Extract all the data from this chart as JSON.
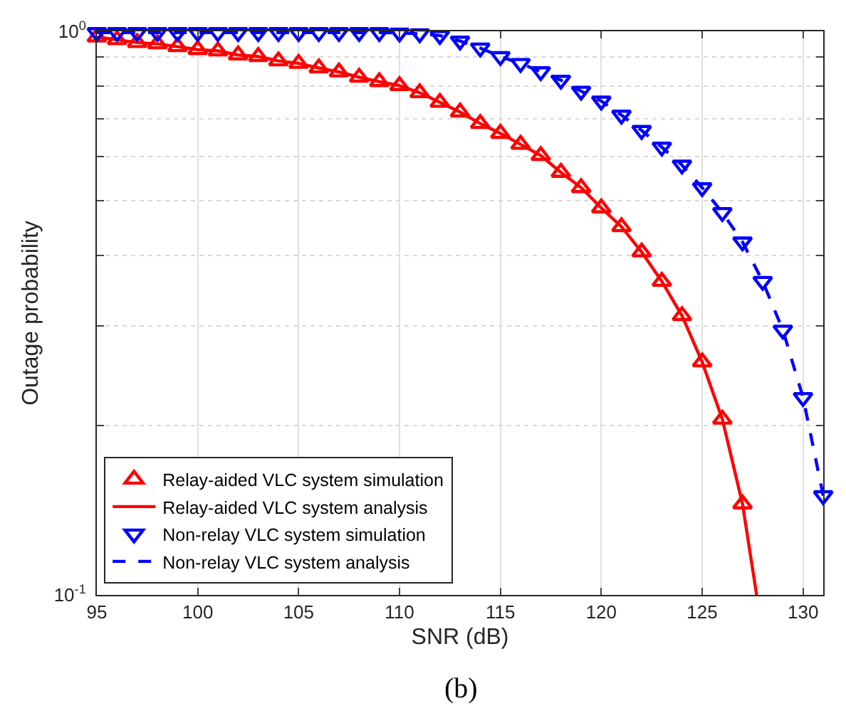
{
  "chart_data": {
    "type": "line",
    "xlabel": "SNR (dB)",
    "ylabel": "Outage probability",
    "annotations": [
      "(b)"
    ],
    "log": "y",
    "grid": true,
    "legend": "bottom left",
    "xlim": [
      95,
      131
    ],
    "xticks": [
      95,
      100,
      105,
      110,
      115,
      120,
      125,
      130
    ],
    "ylim": [
      0.1,
      1
    ],
    "yticks": [
      {
        "value": 0.1,
        "label": "10$^{-1}$"
      },
      {
        "value": 0.2,
        "label": null
      },
      {
        "value": 0.3,
        "label": null
      },
      {
        "value": 0.4,
        "label": null
      },
      {
        "value": 0.5,
        "label": null
      },
      {
        "value": 0.6,
        "label": null
      },
      {
        "value": 0.7,
        "label": null
      },
      {
        "value": 0.8,
        "label": null
      },
      {
        "value": 0.9,
        "label": null
      },
      {
        "value": 1,
        "label": "10$^{0}$"
      }
    ],
    "series": [
      {
        "name": "Relay-aided VLC system simulation",
        "type": "scatter",
        "marker": "triangle",
        "color": "#ff0000",
        "x": [
          95,
          96,
          97,
          98,
          99,
          100,
          101,
          102,
          103,
          104,
          105,
          106,
          107,
          108,
          109,
          110,
          111,
          112,
          113,
          114,
          115,
          116,
          117,
          118,
          119,
          120,
          121,
          122,
          123,
          124,
          125,
          126,
          127
        ],
        "values": [
          0.977,
          0.966,
          0.955,
          0.95,
          0.939,
          0.928,
          0.923,
          0.908,
          0.902,
          0.886,
          0.877,
          0.861,
          0.847,
          0.829,
          0.814,
          0.801,
          0.778,
          0.748,
          0.719,
          0.686,
          0.659,
          0.63,
          0.602,
          0.562,
          0.528,
          0.486,
          0.45,
          0.406,
          0.36,
          0.313,
          0.259,
          0.205,
          0.145
        ]
      },
      {
        "name": "Relay-aided VLC system analysis",
        "type": "line",
        "line_style": "solid",
        "marker": "none",
        "color": "#ff0000",
        "x": [
          95,
          96,
          97,
          98,
          99,
          100,
          101,
          102,
          103,
          104,
          105,
          106,
          107,
          108,
          109,
          110,
          111,
          112,
          113,
          114,
          115,
          116,
          117,
          118,
          119,
          120,
          121,
          122,
          123,
          124,
          125,
          126,
          127,
          127.7
        ],
        "values": [
          0.977,
          0.966,
          0.955,
          0.95,
          0.939,
          0.928,
          0.923,
          0.908,
          0.902,
          0.886,
          0.877,
          0.861,
          0.847,
          0.829,
          0.814,
          0.801,
          0.778,
          0.748,
          0.719,
          0.686,
          0.659,
          0.63,
          0.602,
          0.562,
          0.528,
          0.486,
          0.45,
          0.406,
          0.36,
          0.313,
          0.259,
          0.205,
          0.145,
          0.1
        ]
      },
      {
        "name": "Non-relay VLC system simulation",
        "type": "scatter",
        "marker": "triangle-down",
        "color": "#0000ff",
        "x": [
          95,
          96,
          97,
          98,
          99,
          100,
          101,
          102,
          103,
          104,
          105,
          106,
          107,
          108,
          109,
          110,
          111,
          112,
          113,
          114,
          115,
          116,
          117,
          118,
          119,
          120,
          121,
          122,
          123,
          124,
          125,
          126,
          127,
          128,
          129,
          130,
          131
        ],
        "values": [
          0.995,
          0.995,
          0.995,
          0.995,
          0.995,
          0.995,
          0.995,
          0.995,
          0.995,
          0.995,
          0.995,
          0.995,
          0.995,
          0.995,
          0.995,
          0.993,
          0.99,
          0.983,
          0.961,
          0.934,
          0.902,
          0.877,
          0.848,
          0.819,
          0.783,
          0.752,
          0.71,
          0.667,
          0.623,
          0.579,
          0.528,
          0.477,
          0.423,
          0.36,
          0.295,
          0.224,
          0.15
        ]
      },
      {
        "name": "Non-relay VLC system analysis",
        "type": "line",
        "line_style": "dashed",
        "marker": "none",
        "color": "#0000ff",
        "x": [
          95,
          96,
          97,
          98,
          99,
          100,
          101,
          102,
          103,
          104,
          105,
          106,
          107,
          108,
          109,
          110,
          111,
          112,
          113,
          114,
          115,
          116,
          117,
          118,
          119,
          120,
          121,
          122,
          123,
          124,
          125,
          126,
          127,
          128,
          129,
          130,
          131
        ],
        "values": [
          0.995,
          0.995,
          0.995,
          0.995,
          0.995,
          0.995,
          0.995,
          0.995,
          0.995,
          0.995,
          0.995,
          0.995,
          0.995,
          0.995,
          0.995,
          0.993,
          0.99,
          0.983,
          0.961,
          0.934,
          0.902,
          0.877,
          0.848,
          0.819,
          0.783,
          0.752,
          0.71,
          0.667,
          0.623,
          0.579,
          0.528,
          0.477,
          0.423,
          0.36,
          0.295,
          0.224,
          0.15
        ]
      }
    ]
  }
}
